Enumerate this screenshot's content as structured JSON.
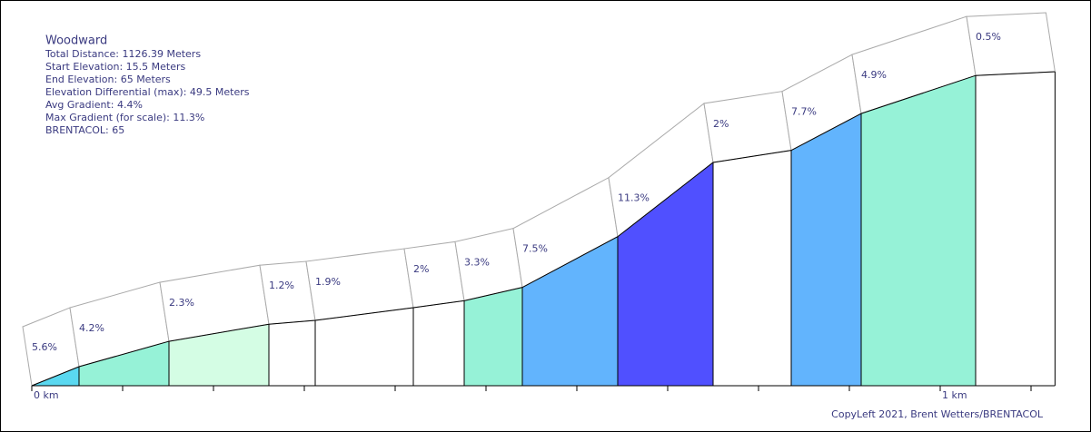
{
  "chart_data": {
    "type": "profile",
    "title": "Woodward",
    "info": [
      "Total Distance: 1126.39 Meters",
      "Start Elevation: 15.5 Meters",
      "End Elevation: 65 Meters",
      "Elevation Differential (max): 49.5 Meters",
      "Avg Gradient: 4.4%",
      "Max Gradient (for scale): 11.3%",
      "BRENTACOL: 65"
    ],
    "x": [
      0,
      52,
      151,
      261,
      312,
      420,
      476,
      540,
      645,
      750,
      836,
      913,
      1039,
      1126.39
    ],
    "values": [
      15.5,
      18.5,
      22.5,
      25.2,
      25.8,
      27.8,
      28.9,
      31.0,
      39.0,
      50.7,
      52.6,
      58.4,
      64.4,
      65
    ],
    "segments": {
      "values": [
        5.6,
        4.2,
        2.3,
        1.2,
        1.9,
        2,
        3.3,
        7.5,
        11.3,
        2,
        7.7,
        4.9,
        0.5
      ],
      "value_labels": [
        "5.6%",
        "4.2%",
        "2.3%",
        "1.2%",
        "1.9%",
        "2%",
        "3.3%",
        "7.5%",
        "11.3%",
        "2%",
        "7.7%",
        "4.9%",
        "0.5%"
      ],
      "colors": [
        "#5ad8f0",
        "#96f2d7",
        "#d4fde4",
        "#ffffff",
        "#ffffff",
        "#ffffff",
        "#96f2d7",
        "#62b4fd",
        "#5050ff",
        "#ffffff",
        "#62b4fd",
        "#96f2d7",
        "#ffffff"
      ]
    },
    "xlim": [
      0,
      1126.39
    ],
    "ylim": [
      15.5,
      65
    ],
    "xticks": [
      {
        "value": 0,
        "label": "0 km"
      },
      {
        "value": 1000,
        "label": "1 km"
      }
    ],
    "minor_xticks": [
      0,
      100,
      200,
      300,
      400,
      500,
      600,
      700,
      800,
      900,
      1000,
      1100
    ],
    "credit": "CopyLeft 2021, Brent Wetters/BRENTACOL"
  }
}
